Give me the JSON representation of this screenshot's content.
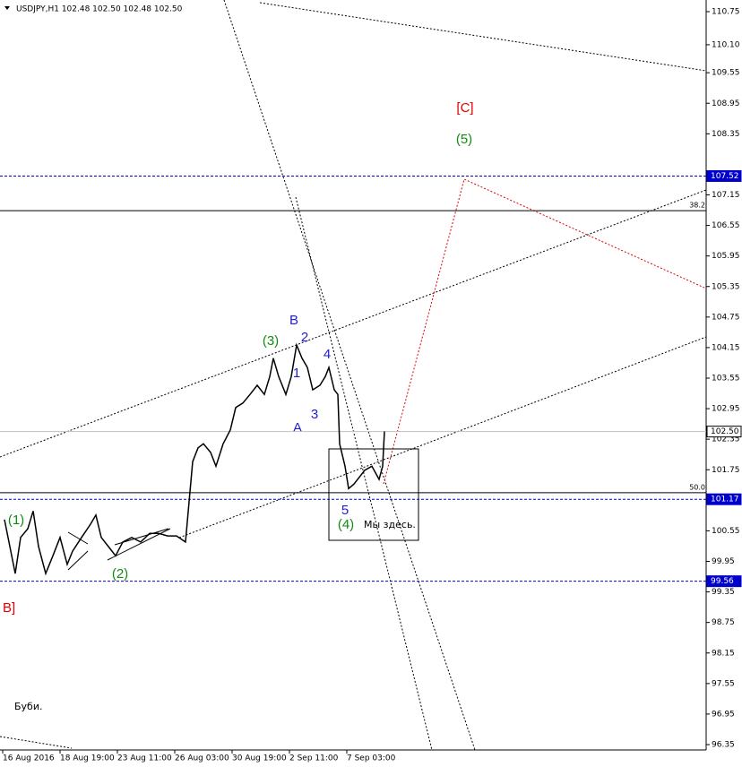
{
  "chart_data": {
    "type": "line",
    "title": "USDJPY,H1  102.48 102.50 102.48 102.50",
    "color": "#000000",
    "x": [
      1,
      4,
      7,
      10,
      14,
      17,
      20,
      24,
      28,
      32,
      36,
      39,
      44,
      49,
      52,
      55,
      59,
      63,
      67,
      72,
      77,
      82,
      87,
      92,
      97,
      102,
      104,
      106,
      109,
      112,
      116,
      119,
      123,
      127,
      130,
      134,
      138,
      142,
      146,
      149,
      151,
      154,
      158,
      161,
      164,
      167,
      170,
      173,
      177,
      180,
      182,
      185,
      187,
      188,
      191,
      193,
      196,
      200,
      202,
      206,
      210,
      212,
      213
    ],
    "values": [
      100.77,
      100.24,
      99.71,
      100.42,
      100.59,
      100.94,
      100.24,
      99.71,
      100.06,
      100.42,
      99.89,
      100.15,
      100.42,
      100.68,
      100.86,
      100.42,
      100.24,
      100.06,
      100.33,
      100.42,
      100.33,
      100.5,
      100.5,
      100.45,
      100.45,
      100.33,
      101.12,
      101.91,
      102.18,
      102.26,
      102.09,
      101.82,
      102.26,
      102.53,
      102.97,
      103.06,
      103.23,
      103.41,
      103.23,
      103.58,
      103.94,
      103.58,
      103.23,
      103.58,
      104.2,
      103.94,
      103.76,
      103.32,
      103.41,
      103.58,
      103.76,
      103.32,
      103.23,
      102.26,
      101.82,
      101.38,
      101.47,
      101.65,
      101.74,
      101.82,
      101.56,
      101.82,
      102.5
    ],
    "xlim": [
      -1.5,
      392.5
    ],
    "xticks": [
      {
        "value": 0,
        "label": "16 Aug 2016"
      },
      {
        "value": 32,
        "label": "18 Aug 19:00"
      },
      {
        "value": 64,
        "label": "23 Aug 11:00"
      },
      {
        "value": 96,
        "label": "26 Aug 03:00"
      },
      {
        "value": 128,
        "label": "30 Aug 19:00"
      },
      {
        "value": 160,
        "label": "2 Sep 11:00"
      },
      {
        "value": 192,
        "label": "7 Sep 03:00"
      }
    ],
    "ylim": [
      96.35,
      110.75
    ],
    "yticks": [
      110.75,
      {
        "value": 110.1,
        "label": "110.10"
      },
      109.55,
      108.95,
      108.35,
      107.15,
      106.55,
      105.95,
      105.35,
      104.75,
      104.15,
      103.55,
      102.95,
      102.35,
      101.75,
      100.55,
      99.95,
      99.35,
      98.75,
      98.15,
      97.55,
      96.95,
      96.35
    ],
    "levels": [
      {
        "value": 107.52,
        "color": "#0000cc",
        "style": "dashed",
        "label_fill": "#0000cc",
        "label_color": "#ffffff"
      },
      {
        "value": 101.17,
        "color": "#0000cc",
        "style": "dashed",
        "label_fill": "#0000cc",
        "label_color": "#ffffff"
      },
      {
        "value": 99.56,
        "color": "#0000cc",
        "style": "dashed",
        "label_fill": "#0000cc",
        "label_color": "#ffffff"
      },
      {
        "value": 102.5,
        "label": "102.50",
        "color": "#c0c0c0",
        "style": "solid",
        "label_fill": "#ffffff",
        "label_color": "#000000"
      }
    ],
    "fib_levels": [
      {
        "value": 106.84,
        "label": "38.2"
      },
      {
        "value": 101.3,
        "label": "50.0"
      }
    ],
    "annotations": [
      {
        "text": "[C]",
        "color": "#e00000"
      },
      {
        "text": "(5)",
        "color": "#138a13"
      },
      {
        "text": "B",
        "color": "#2020d0"
      },
      {
        "text": "(3)",
        "color": "#138a13"
      },
      {
        "text": "2",
        "color": "#2020d0"
      },
      {
        "text": "1",
        "color": "#2020d0"
      },
      {
        "text": "4",
        "color": "#2020d0"
      },
      {
        "text": "3",
        "color": "#2020d0"
      },
      {
        "text": "A",
        "color": "#2020d0"
      },
      {
        "text": "5",
        "color": "#2020d0"
      },
      {
        "text": "(4)",
        "color": "#138a13"
      },
      {
        "text": "Мы здесь.",
        "color": "#000000"
      },
      {
        "text": "(1)",
        "color": "#138a13"
      },
      {
        "text": "(2)",
        "color": "#138a13"
      },
      {
        "text": "B]",
        "color": "#e00000"
      },
      {
        "text": "Буби.",
        "color": "#000000"
      }
    ]
  }
}
